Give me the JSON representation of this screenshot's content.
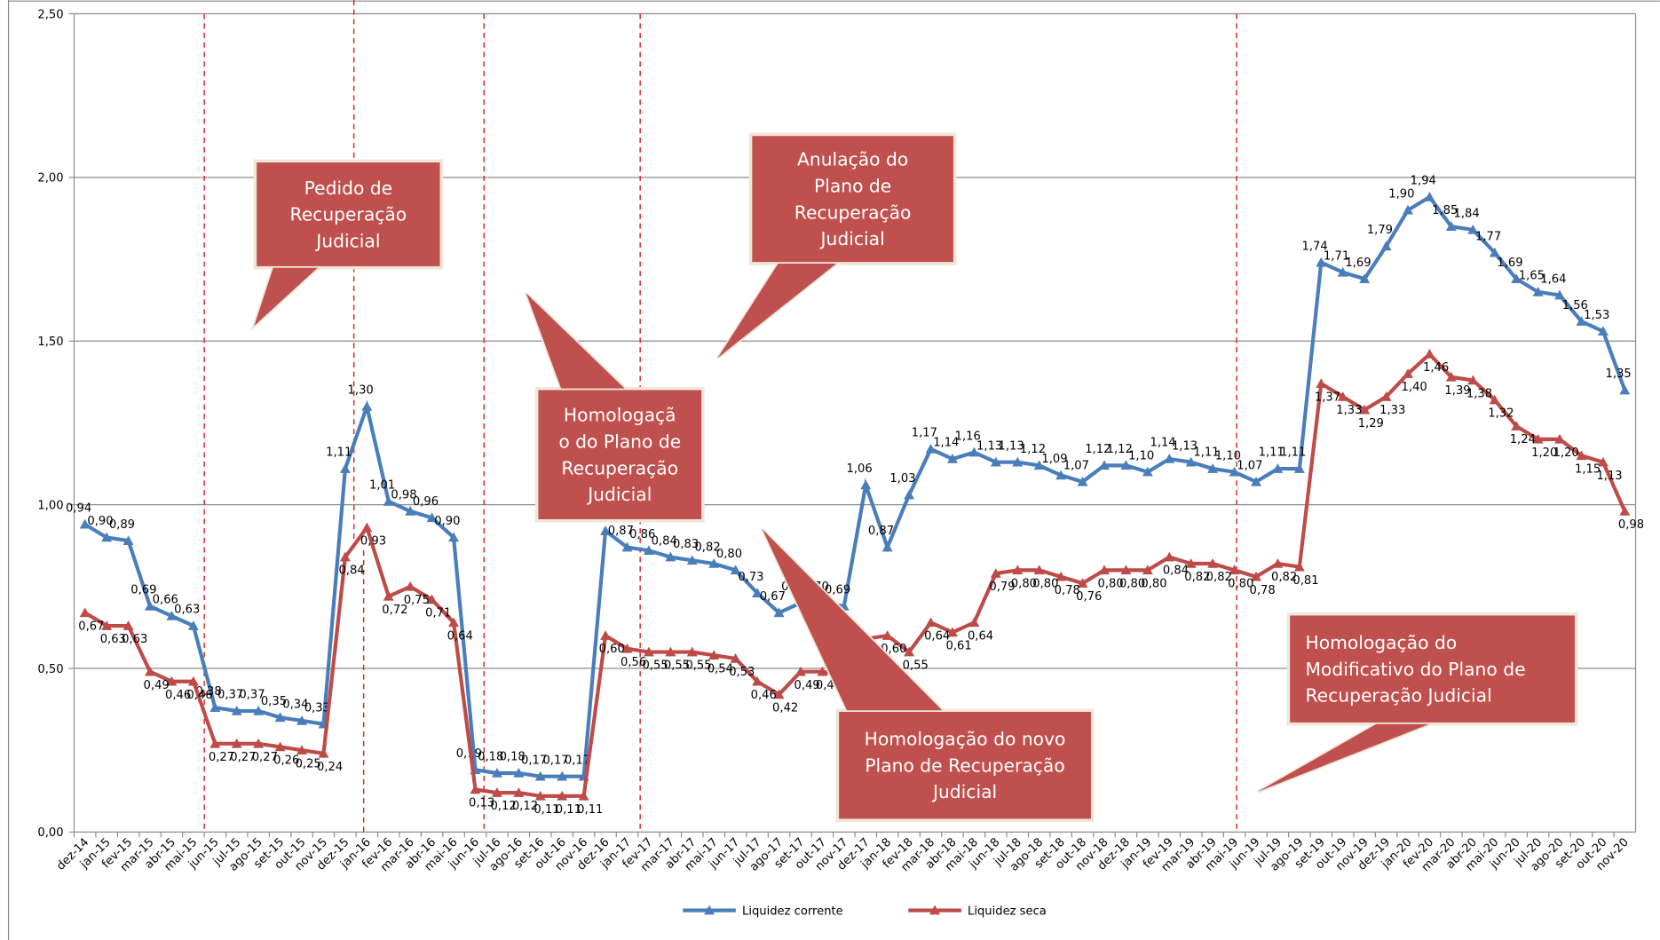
{
  "chart_data": {
    "type": "line",
    "categories": [
      "dez-14",
      "jan-15",
      "fev-15",
      "mar-15",
      "abr-15",
      "mai-15",
      "jun-15",
      "jul-15",
      "ago-15",
      "set-15",
      "out-15",
      "nov-15",
      "dez-15",
      "jan-16",
      "fev-16",
      "mar-16",
      "abr-16",
      "mai-16",
      "jun-16",
      "jul-16",
      "ago-16",
      "set-16",
      "out-16",
      "nov-16",
      "dez-16",
      "jan-17",
      "fev-17",
      "mar-17",
      "abr-17",
      "mai-17",
      "jun-17",
      "jul-17",
      "ago-17",
      "set-17",
      "out-17",
      "nov-17",
      "dez-17",
      "jan-18",
      "fev-18",
      "mar-18",
      "abr-18",
      "mai-18",
      "jun-18",
      "jul-18",
      "ago-18",
      "set-18",
      "out-18",
      "nov-18",
      "dez-18",
      "jan-19",
      "fev-19",
      "mar-19",
      "abr-19",
      "mai-19",
      "jun-19",
      "jul-19",
      "ago-19",
      "set-19",
      "out-19",
      "nov-19",
      "dez-19",
      "jan-20",
      "fev-20",
      "mar-20",
      "abr-20",
      "mai-20",
      "jun-20",
      "jul-20",
      "ago-20",
      "set-20",
      "out-20",
      "nov-20"
    ],
    "series": [
      {
        "name": "Liquidez corrente",
        "color": "#4a7ebb",
        "values": [
          0.94,
          0.9,
          0.89,
          0.69,
          0.66,
          0.63,
          0.38,
          0.37,
          0.37,
          0.35,
          0.34,
          0.33,
          1.11,
          1.3,
          1.01,
          0.98,
          0.96,
          0.9,
          0.19,
          0.18,
          0.18,
          0.17,
          0.17,
          0.17,
          0.92,
          0.87,
          0.86,
          0.84,
          0.83,
          0.82,
          0.8,
          0.73,
          0.67,
          0.7,
          0.7,
          0.69,
          1.06,
          0.87,
          1.03,
          1.17,
          1.14,
          1.16,
          1.13,
          1.13,
          1.12,
          1.09,
          1.07,
          1.12,
          1.12,
          1.1,
          1.14,
          1.13,
          1.11,
          1.1,
          1.07,
          1.11,
          1.11,
          1.74,
          1.71,
          1.69,
          1.79,
          1.9,
          1.94,
          1.85,
          1.84,
          1.77,
          1.69,
          1.65,
          1.64,
          1.56,
          1.53,
          1.35
        ],
        "value_labels": [
          "0,94",
          "0,90",
          "0,89",
          "0,69",
          "0,66",
          "0,63",
          "0,38",
          "0,37",
          "0,37",
          "0,35",
          "0,34",
          "0,33",
          "1,11",
          "1,30",
          "1,01",
          "0,98",
          "0,96",
          "0,90",
          "0,19",
          "0,18",
          "0,18",
          "0,17",
          "0,17",
          "0,17",
          "0,92",
          "0,87",
          "0,86",
          "0,84",
          "0,83",
          "0,82",
          "0,80",
          "0,73",
          "0,67",
          "0,70",
          "0,70",
          "0,69",
          "1,06",
          "0,87",
          "1,03",
          "1,17",
          "1,14",
          "1,16",
          "1,13",
          "1,13",
          "1,12",
          "1,09",
          "1,07",
          "1,12",
          "1,12",
          "1,10",
          "1,14",
          "1,13",
          "1,11",
          "1,10",
          "1,07",
          "1,11",
          "1,11",
          "1,74",
          "1,71",
          "1,69",
          "1,79",
          "1,90",
          "1,94",
          "1,85",
          "1,84",
          "1,77",
          "1,69",
          "1,65",
          "1,64",
          "1,56",
          "1,53",
          "1,35"
        ]
      },
      {
        "name": "Liquidez seca",
        "color": "#be4b48",
        "values": [
          0.67,
          0.63,
          0.63,
          0.49,
          0.46,
          0.46,
          0.27,
          0.27,
          0.27,
          0.26,
          0.25,
          0.24,
          0.84,
          0.93,
          0.72,
          0.75,
          0.71,
          0.64,
          0.13,
          0.12,
          0.12,
          0.11,
          0.11,
          0.11,
          0.6,
          0.56,
          0.55,
          0.55,
          0.55,
          0.54,
          0.53,
          0.46,
          0.42,
          0.49,
          0.49,
          0.48,
          0.59,
          0.6,
          0.55,
          0.64,
          0.61,
          0.64,
          0.79,
          0.8,
          0.8,
          0.78,
          0.76,
          0.8,
          0.8,
          0.8,
          0.84,
          0.82,
          0.82,
          0.8,
          0.78,
          0.82,
          0.81,
          1.37,
          1.33,
          1.29,
          1.33,
          1.4,
          1.46,
          1.39,
          1.38,
          1.32,
          1.24,
          1.2,
          1.2,
          1.15,
          1.13,
          0.98
        ],
        "value_labels": [
          "0,67",
          "0,63",
          "0,63",
          "0,49",
          "0,46",
          "0,46",
          "0,27",
          "0,27",
          "0,27",
          "0,26",
          "0,25",
          "0,24",
          "0,84",
          "0,93",
          "0,72",
          "0,75",
          "0,71",
          "0,64",
          "0,13",
          "0,12",
          "0,12",
          "0,11",
          "0,11",
          "0,11",
          "0,60",
          "0,56",
          "0,55",
          "0,55",
          "0,55",
          "0,54",
          "0,53",
          "0,46",
          "0,42",
          "0,49",
          "0,49",
          "0,48",
          "0,59",
          "0,60",
          "0,55",
          "0,64",
          "0,61",
          "0,64",
          "0,79",
          "0,80",
          "0,80",
          "0,78",
          "0,76",
          "0,80",
          "0,80",
          "0,80",
          "0,84",
          "0,82",
          "0,82",
          "0,80",
          "0,78",
          "0,82",
          "0,81",
          "1,37",
          "1,33",
          "1,29",
          "1,33",
          "1,40",
          "1,46",
          "1,39",
          "1,38",
          "1,32",
          "1,24",
          "1,20",
          "1,20",
          "1,15",
          "1,13",
          "0,98"
        ]
      }
    ],
    "ylim": [
      0,
      2.5
    ],
    "yticks": [
      {
        "value": 0,
        "label": "0,00"
      },
      {
        "value": 0.5,
        "label": "0,50"
      },
      {
        "value": 1,
        "label": "1,00"
      },
      {
        "value": 1.5,
        "label": "1,50"
      },
      {
        "value": 2,
        "label": "2,00"
      },
      {
        "value": 2.5,
        "label": "2,50"
      }
    ],
    "grid": true,
    "legend": "bottom",
    "annotations": [
      [
        "Pedido de",
        "Recuperação",
        "Judicial"
      ],
      [
        "Anulação do",
        "Plano de",
        "Recuperação",
        "Judicial"
      ],
      [
        "Homologaçã",
        "o do Plano de",
        "Recuperação",
        "Judicial"
      ],
      [
        "Homologação do novo",
        "Plano de Recuperação",
        "Judicial"
      ],
      [
        "Homologação do",
        "Modificativo do Plano de",
        "Recuperação Judicial"
      ]
    ]
  }
}
